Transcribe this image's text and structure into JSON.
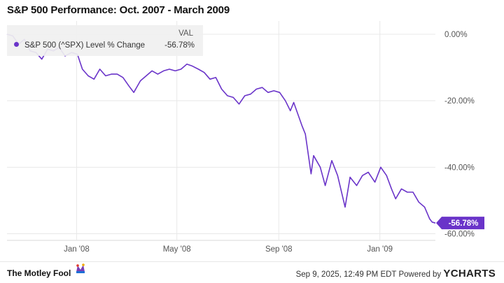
{
  "chart_data": {
    "type": "line",
    "title": "S&P 500 Performance: Oct. 2007 - March 2009",
    "legend": {
      "header": "VAL",
      "placement": "top-left"
    },
    "series": [
      {
        "name": "S&P 500 (^SPX) Level % Change",
        "color": "#6a34c9",
        "last_value_label": "-56.78%",
        "x": [
          "2007-10-09",
          "2007-10-16",
          "2007-10-23",
          "2007-10-30",
          "2007-11-06",
          "2007-11-13",
          "2007-11-20",
          "2007-11-27",
          "2007-12-04",
          "2007-12-11",
          "2007-12-18",
          "2007-12-26",
          "2008-01-02",
          "2008-01-08",
          "2008-01-15",
          "2008-01-22",
          "2008-01-29",
          "2008-02-05",
          "2008-02-12",
          "2008-02-19",
          "2008-02-26",
          "2008-03-04",
          "2008-03-10",
          "2008-03-18",
          "2008-03-25",
          "2008-04-01",
          "2008-04-08",
          "2008-04-15",
          "2008-04-22",
          "2008-04-29",
          "2008-05-06",
          "2008-05-13",
          "2008-05-19",
          "2008-05-27",
          "2008-06-03",
          "2008-06-10",
          "2008-06-17",
          "2008-06-24",
          "2008-07-01",
          "2008-07-08",
          "2008-07-15",
          "2008-07-22",
          "2008-07-29",
          "2008-08-05",
          "2008-08-12",
          "2008-08-19",
          "2008-08-26",
          "2008-09-02",
          "2008-09-09",
          "2008-09-15",
          "2008-09-19",
          "2008-09-29",
          "2008-10-03",
          "2008-10-10",
          "2008-10-13",
          "2008-10-21",
          "2008-10-27",
          "2008-11-04",
          "2008-11-11",
          "2008-11-20",
          "2008-11-26",
          "2008-12-04",
          "2008-12-11",
          "2008-12-18",
          "2008-12-26",
          "2009-01-02",
          "2009-01-09",
          "2009-01-15",
          "2009-01-20",
          "2009-01-27",
          "2009-02-03",
          "2009-02-10",
          "2009-02-17",
          "2009-02-24",
          "2009-03-02",
          "2009-03-05",
          "2009-03-09"
        ],
        "y": [
          0.0,
          -0.5,
          -3.0,
          -1.5,
          -5.0,
          -5.5,
          -7.5,
          -4.5,
          -5.0,
          -4.0,
          -6.5,
          -5.5,
          -6.0,
          -10.5,
          -12.5,
          -13.5,
          -10.5,
          -12.5,
          -12.0,
          -12.0,
          -13.0,
          -15.5,
          -17.5,
          -14.0,
          -12.5,
          -11.0,
          -12.0,
          -11.0,
          -10.5,
          -11.0,
          -10.5,
          -9.0,
          -9.5,
          -10.5,
          -11.5,
          -13.5,
          -13.0,
          -16.5,
          -18.5,
          -19.0,
          -21.0,
          -18.5,
          -18.0,
          -16.5,
          -16.0,
          -17.5,
          -17.0,
          -17.5,
          -20.0,
          -23.0,
          -20.5,
          -27.5,
          -30.0,
          -42.0,
          -36.5,
          -40.0,
          -45.5,
          -38.0,
          -42.5,
          -52.0,
          -43.0,
          -45.5,
          -42.5,
          -41.5,
          -44.5,
          -40.0,
          -42.5,
          -46.5,
          -49.5,
          -46.5,
          -47.5,
          -47.5,
          -50.5,
          -52.0,
          -55.5,
          -56.5,
          -56.78
        ]
      }
    ],
    "x_ticks": [
      "Jan '08",
      "May '08",
      "Sep '08",
      "Jan '09"
    ],
    "x_tick_dates": [
      "2008-01-01",
      "2008-05-01",
      "2008-09-01",
      "2009-01-01"
    ],
    "x_range": [
      "2007-10-09",
      "2009-03-09"
    ],
    "y_ticks": [
      0,
      -20,
      -40,
      -60
    ],
    "y_tick_labels": [
      "0.00%",
      "-20.00%",
      "-40.00%",
      "-60.00%"
    ],
    "ylim": [
      -62,
      4
    ],
    "grid": true
  },
  "footer": {
    "brand": "The Motley Fool",
    "timestamp": "Sep 9, 2025, 12:49 PM EDT",
    "powered_by": "Powered by",
    "provider": "YCHARTS"
  }
}
